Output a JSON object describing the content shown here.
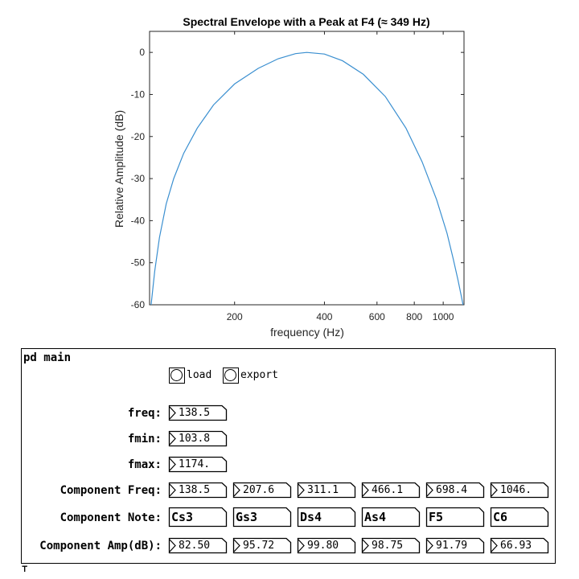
{
  "chart_data": {
    "type": "line",
    "title": "Spectral Envelope with a Peak at F4 (≈ 349 Hz)",
    "xlabel": "frequency (Hz)",
    "ylabel": "Relative Amplitude (dB)",
    "xscale": "log",
    "xlim": [
      103.8,
      1174
    ],
    "ylim": [
      -60,
      5
    ],
    "xticks": [
      200,
      400,
      600,
      800,
      1000
    ],
    "xticklabels": [
      "200",
      "400",
      "600",
      "800",
      "1000"
    ],
    "yticks": [
      0,
      -10,
      -20,
      -30,
      -40,
      -50,
      -60
    ],
    "yticklabels": [
      "0",
      "-10",
      "-20",
      "-30",
      "-40",
      "-50",
      "-60"
    ],
    "grid": false,
    "peak_hz": 349,
    "line_color": "#3a8fd0",
    "series": [
      {
        "x": [
          105,
          108,
          112,
          118,
          125,
          135,
          150,
          170,
          200,
          240,
          280,
          320,
          349,
          400,
          460,
          540,
          640,
          750,
          850,
          950,
          1030,
          1080,
          1120,
          1150,
          1165
        ],
        "values": [
          -60,
          -52,
          -44,
          -36,
          -30,
          -24,
          -18,
          -12.5,
          -7.5,
          -3.8,
          -1.5,
          -0.3,
          0,
          -0.4,
          -2,
          -5.2,
          -10.5,
          -18,
          -26,
          -35,
          -43,
          -49,
          -54,
          -58,
          -60
        ]
      }
    ]
  },
  "pd": {
    "title": "pd main",
    "load_label": "load",
    "export_label": "export",
    "freq_label": "freq:",
    "freq_value": "138.5",
    "fmin_label": "fmin:",
    "fmin_value": "103.8",
    "fmax_label": "fmax:",
    "fmax_value": "1174.",
    "component_freq_label": "Component Freq:",
    "component_freqs": [
      "138.5",
      "207.6",
      "311.1",
      "466.1",
      "698.4",
      "1046."
    ],
    "component_note_label": "Component Note:",
    "component_notes": [
      "Cs3",
      "Gs3",
      "Ds4",
      "As4",
      "F5",
      "C6"
    ],
    "component_amp_label": "Component Amp(dB):",
    "component_amps": [
      "82.50",
      "95.72",
      "99.80",
      "98.75",
      "91.79",
      "66.93"
    ]
  }
}
